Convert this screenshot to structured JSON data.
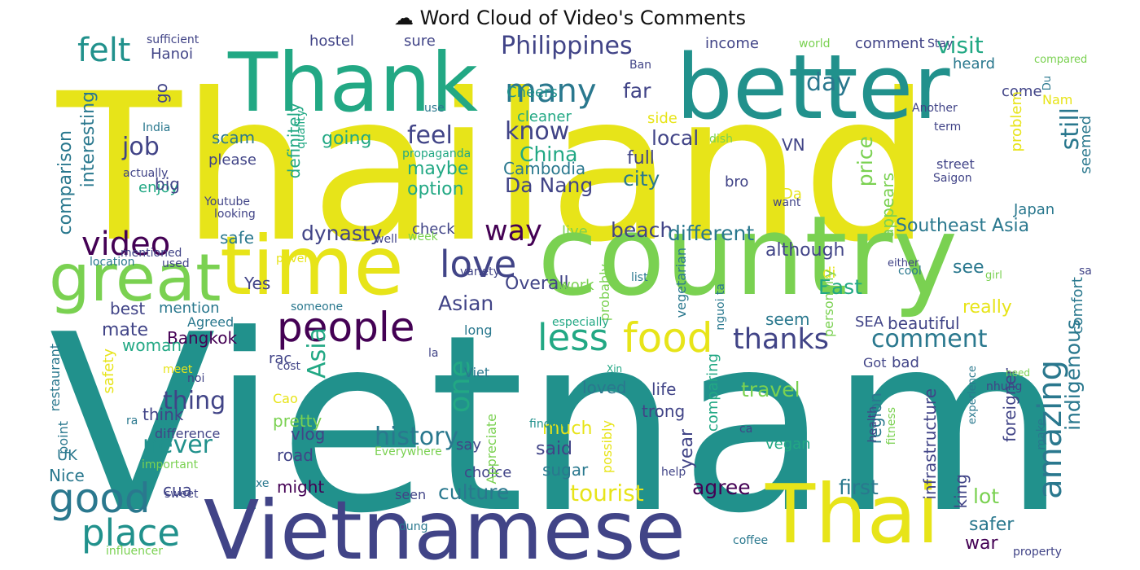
{
  "title": "☁ Word Cloud of Video's Comments",
  "palette": {
    "yellow": "#e7e419",
    "lime": "#7ad151",
    "green": "#22a884",
    "teal": "#21918c",
    "blue": "#2a788e",
    "indigo": "#414487",
    "purple": "#440154"
  },
  "words": [
    {
      "text": "Thailand",
      "color": "yellow"
    },
    {
      "text": "Vietnam",
      "color": "teal"
    },
    {
      "text": "Vietnamese",
      "color": "indigo"
    },
    {
      "text": "country",
      "color": "lime"
    },
    {
      "text": "better",
      "color": "teal"
    },
    {
      "text": "Thank",
      "color": "green"
    },
    {
      "text": "Thai",
      "color": "yellow"
    },
    {
      "text": "time",
      "color": "yellow"
    },
    {
      "text": "great",
      "color": "lime"
    },
    {
      "text": "people",
      "color": "purple"
    },
    {
      "text": "food",
      "color": "yellow"
    },
    {
      "text": "video",
      "color": "purple"
    },
    {
      "text": "amazing",
      "color": "blue"
    },
    {
      "text": "love",
      "color": "indigo"
    },
    {
      "text": "good",
      "color": "blue"
    },
    {
      "text": "place",
      "color": "teal"
    },
    {
      "text": "less",
      "color": "green"
    },
    {
      "text": "thanks",
      "color": "indigo"
    },
    {
      "text": "comment",
      "color": "blue"
    },
    {
      "text": "many",
      "color": "blue"
    },
    {
      "text": "felt",
      "color": "teal"
    },
    {
      "text": "way",
      "color": "purple"
    },
    {
      "text": "Philippines",
      "color": "indigo"
    },
    {
      "text": "know",
      "color": "indigo"
    },
    {
      "text": "feel",
      "color": "indigo"
    },
    {
      "text": "history",
      "color": "blue"
    },
    {
      "text": "never",
      "color": "teal"
    },
    {
      "text": "thing",
      "color": "indigo"
    },
    {
      "text": "one",
      "color": "green"
    },
    {
      "text": "Asia",
      "color": "green"
    },
    {
      "text": "Asian",
      "color": "indigo"
    },
    {
      "text": "still",
      "color": "blue"
    },
    {
      "text": "indigenous",
      "color": "blue"
    },
    {
      "text": "job",
      "color": "indigo"
    },
    {
      "text": "day",
      "color": "blue"
    },
    {
      "text": "visit",
      "color": "green"
    },
    {
      "text": "China",
      "color": "green"
    },
    {
      "text": "dynasty",
      "color": "indigo"
    },
    {
      "text": "tourist",
      "color": "yellow"
    },
    {
      "text": "culture",
      "color": "blue"
    },
    {
      "text": "agree",
      "color": "purple"
    },
    {
      "text": "first",
      "color": "blue"
    },
    {
      "text": "travel",
      "color": "lime"
    },
    {
      "text": "Southeast Asia",
      "color": "blue"
    },
    {
      "text": "beach",
      "color": "indigo"
    },
    {
      "text": "different",
      "color": "blue"
    },
    {
      "text": "although",
      "color": "indigo"
    },
    {
      "text": "local",
      "color": "indigo"
    },
    {
      "text": "city",
      "color": "blue"
    },
    {
      "text": "full",
      "color": "indigo"
    },
    {
      "text": "far",
      "color": "indigo"
    },
    {
      "text": "Da Nang",
      "color": "indigo"
    },
    {
      "text": "Cambodia",
      "color": "blue"
    },
    {
      "text": "option",
      "color": "green"
    },
    {
      "text": "maybe",
      "color": "green"
    },
    {
      "text": "going",
      "color": "green"
    },
    {
      "text": "price",
      "color": "lime"
    },
    {
      "text": "comparison",
      "color": "blue"
    },
    {
      "text": "interesting",
      "color": "blue"
    },
    {
      "text": "definitely",
      "color": "green"
    },
    {
      "text": "East",
      "color": "green"
    },
    {
      "text": "see",
      "color": "blue"
    },
    {
      "text": "Overall",
      "color": "indigo"
    },
    {
      "text": "mate",
      "color": "indigo"
    },
    {
      "text": "Bangkok",
      "color": "purple"
    },
    {
      "text": "much",
      "color": "yellow"
    },
    {
      "text": "said",
      "color": "indigo"
    },
    {
      "text": "loved",
      "color": "blue"
    },
    {
      "text": "life",
      "color": "indigo"
    },
    {
      "text": "trong",
      "color": "indigo"
    },
    {
      "text": "year",
      "color": "indigo"
    },
    {
      "text": "sugar",
      "color": "blue"
    },
    {
      "text": "vlog",
      "color": "indigo"
    },
    {
      "text": "road",
      "color": "indigo"
    },
    {
      "text": "might",
      "color": "purple"
    },
    {
      "text": "cua",
      "color": "indigo"
    },
    {
      "text": "UK",
      "color": "blue"
    },
    {
      "text": "Nice",
      "color": "blue"
    },
    {
      "text": "lot",
      "color": "lime"
    },
    {
      "text": "safer",
      "color": "blue"
    },
    {
      "text": "war",
      "color": "purple"
    },
    {
      "text": "king",
      "color": "indigo"
    },
    {
      "text": "foreigner",
      "color": "indigo"
    },
    {
      "text": "region",
      "color": "blue"
    },
    {
      "text": "infrastructure",
      "color": "indigo"
    },
    {
      "text": "beautiful",
      "color": "indigo"
    },
    {
      "text": "really",
      "color": "yellow"
    },
    {
      "text": "SEA",
      "color": "indigo"
    },
    {
      "text": "seem",
      "color": "blue"
    },
    {
      "text": "pretty",
      "color": "lime"
    },
    {
      "text": "think",
      "color": "indigo"
    },
    {
      "text": "mention",
      "color": "blue"
    },
    {
      "text": "best",
      "color": "indigo"
    },
    {
      "text": "Yes",
      "color": "indigo"
    },
    {
      "text": "safe",
      "color": "blue"
    },
    {
      "text": "woman",
      "color": "green"
    },
    {
      "text": "enjoy",
      "color": "green"
    },
    {
      "text": "big",
      "color": "indigo"
    },
    {
      "text": "scam",
      "color": "blue"
    },
    {
      "text": "please",
      "color": "indigo"
    },
    {
      "text": "go",
      "color": "indigo"
    },
    {
      "text": "hostel",
      "color": "indigo"
    },
    {
      "text": "sure",
      "color": "indigo"
    },
    {
      "text": "Hanoi",
      "color": "indigo"
    },
    {
      "text": "income",
      "color": "indigo"
    },
    {
      "text": "comment",
      "color": "indigo"
    },
    {
      "text": "heard",
      "color": "blue"
    },
    {
      "text": "come",
      "color": "indigo"
    },
    {
      "text": "Nam",
      "color": "yellow"
    },
    {
      "text": "Cheers",
      "color": "teal"
    },
    {
      "text": "cleaner",
      "color": "green"
    },
    {
      "text": "side",
      "color": "yellow"
    },
    {
      "text": "VN",
      "color": "indigo"
    },
    {
      "text": "bro",
      "color": "indigo"
    },
    {
      "text": "Da",
      "color": "yellow"
    },
    {
      "text": "appears",
      "color": "lime"
    },
    {
      "text": "problem",
      "color": "yellow"
    },
    {
      "text": "street",
      "color": "indigo"
    },
    {
      "text": "Saigon",
      "color": "indigo"
    },
    {
      "text": "seemed",
      "color": "blue"
    },
    {
      "text": "check",
      "color": "indigo"
    },
    {
      "text": "live",
      "color": "lime"
    },
    {
      "text": "work",
      "color": "lime"
    },
    {
      "text": "di",
      "color": "yellow"
    },
    {
      "text": "Japan",
      "color": "blue"
    },
    {
      "text": "comfort",
      "color": "blue"
    },
    {
      "text": "bad",
      "color": "indigo"
    },
    {
      "text": "Got",
      "color": "indigo"
    },
    {
      "text": "say",
      "color": "indigo"
    },
    {
      "text": "choice",
      "color": "indigo"
    },
    {
      "text": "seen",
      "color": "indigo"
    },
    {
      "text": "comparing",
      "color": "green"
    },
    {
      "text": "vegan",
      "color": "green"
    },
    {
      "text": "restaurant",
      "color": "blue"
    },
    {
      "text": "point",
      "color": "blue"
    },
    {
      "text": "safety",
      "color": "yellow"
    },
    {
      "text": "difference",
      "color": "indigo"
    },
    {
      "text": "Cao",
      "color": "yellow"
    },
    {
      "text": "rac",
      "color": "indigo"
    },
    {
      "text": "long",
      "color": "blue"
    },
    {
      "text": "Viet",
      "color": "blue"
    },
    {
      "text": "Agreed",
      "color": "blue"
    },
    {
      "text": "someone",
      "color": "blue"
    },
    {
      "text": "probably",
      "color": "lime"
    },
    {
      "text": "vegetarian",
      "color": "blue"
    },
    {
      "text": "personally",
      "color": "lime"
    },
    {
      "text": "Appreciate",
      "color": "lime"
    },
    {
      "text": "possibly",
      "color": "yellow"
    },
    {
      "text": "help",
      "color": "indigo"
    },
    {
      "text": "health",
      "color": "indigo"
    },
    {
      "text": "fitness",
      "color": "lime"
    },
    {
      "text": "experience",
      "color": "blue"
    },
    {
      "text": "make",
      "color": "blue"
    },
    {
      "text": "need",
      "color": "lime"
    },
    {
      "text": "Xin",
      "color": "green"
    },
    {
      "text": "nhung",
      "color": "indigo"
    },
    {
      "text": "sao",
      "color": "indigo"
    },
    {
      "text": "girl",
      "color": "lime"
    },
    {
      "text": "either",
      "color": "indigo"
    },
    {
      "text": "cool",
      "color": "blue"
    },
    {
      "text": "list",
      "color": "blue"
    },
    {
      "text": "nguoi ta",
      "color": "blue"
    },
    {
      "text": "especially",
      "color": "green"
    },
    {
      "text": "want",
      "color": "indigo"
    },
    {
      "text": "quality",
      "color": "green"
    },
    {
      "text": "India",
      "color": "blue"
    },
    {
      "text": "actually",
      "color": "indigo"
    },
    {
      "text": "Youtube",
      "color": "indigo"
    },
    {
      "text": "looking",
      "color": "indigo"
    },
    {
      "text": "mentioned",
      "color": "indigo"
    },
    {
      "text": "location",
      "color": "blue"
    },
    {
      "text": "used",
      "color": "indigo"
    },
    {
      "text": "poverty",
      "color": "yellow"
    },
    {
      "text": "week",
      "color": "lime"
    },
    {
      "text": "variety",
      "color": "indigo"
    },
    {
      "text": "well",
      "color": "indigo"
    },
    {
      "text": "propaganda",
      "color": "green"
    },
    {
      "text": "use",
      "color": "blue"
    },
    {
      "text": "dish",
      "color": "lime"
    },
    {
      "text": "term",
      "color": "indigo"
    },
    {
      "text": "Another",
      "color": "indigo"
    },
    {
      "text": "compared",
      "color": "lime"
    },
    {
      "text": "Du",
      "color": "blue"
    },
    {
      "text": "Ban",
      "color": "indigo"
    },
    {
      "text": "world",
      "color": "lime"
    },
    {
      "text": "Stay",
      "color": "indigo"
    },
    {
      "text": "sufficient",
      "color": "indigo"
    },
    {
      "text": "meet",
      "color": "yellow"
    },
    {
      "text": "noi",
      "color": "indigo"
    },
    {
      "text": "ra",
      "color": "blue"
    },
    {
      "text": "la",
      "color": "indigo"
    },
    {
      "text": "cost",
      "color": "indigo"
    },
    {
      "text": "finding",
      "color": "teal"
    },
    {
      "text": "ca",
      "color": "indigo"
    },
    {
      "text": "Everywhere",
      "color": "lime"
    },
    {
      "text": "important",
      "color": "lime"
    },
    {
      "text": "sweet",
      "color": "indigo"
    },
    {
      "text": "xe",
      "color": "blue"
    },
    {
      "text": "dung",
      "color": "blue"
    },
    {
      "text": "influencer",
      "color": "lime"
    },
    {
      "text": "coffee",
      "color": "blue"
    },
    {
      "text": "property",
      "color": "indigo"
    }
  ]
}
